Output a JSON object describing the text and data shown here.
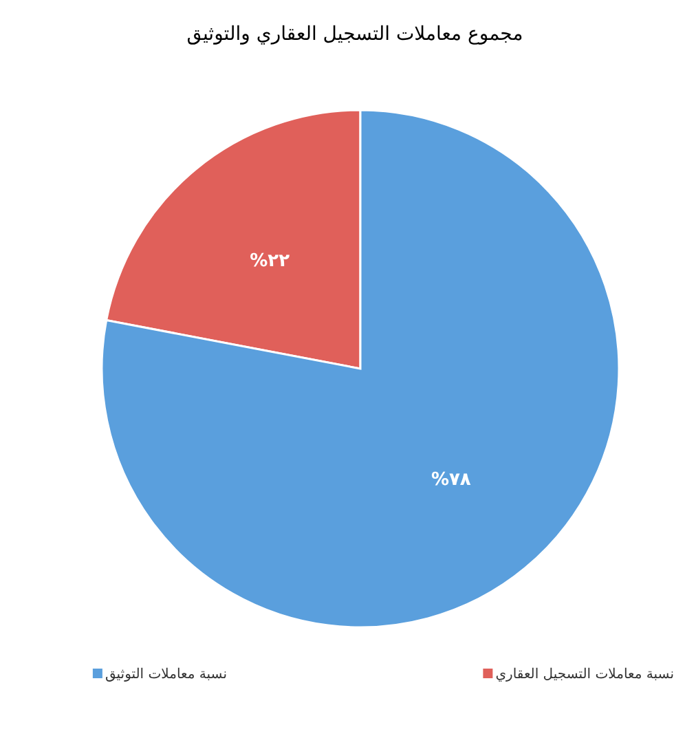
{
  "chart_data": {
    "type": "pie",
    "title": "مجموع معاملات التسجيل العقاري والتوثيق",
    "categories": [
      "نسبة معاملات التسجيل  العقاري",
      "نسبة معاملات التوثيق"
    ],
    "values": [
      22,
      78
    ],
    "colors": [
      "#e0605a",
      "#5a9fdd"
    ],
    "value_labels": [
      "٢٢%",
      "٧٨%"
    ],
    "legend": "bottom"
  }
}
